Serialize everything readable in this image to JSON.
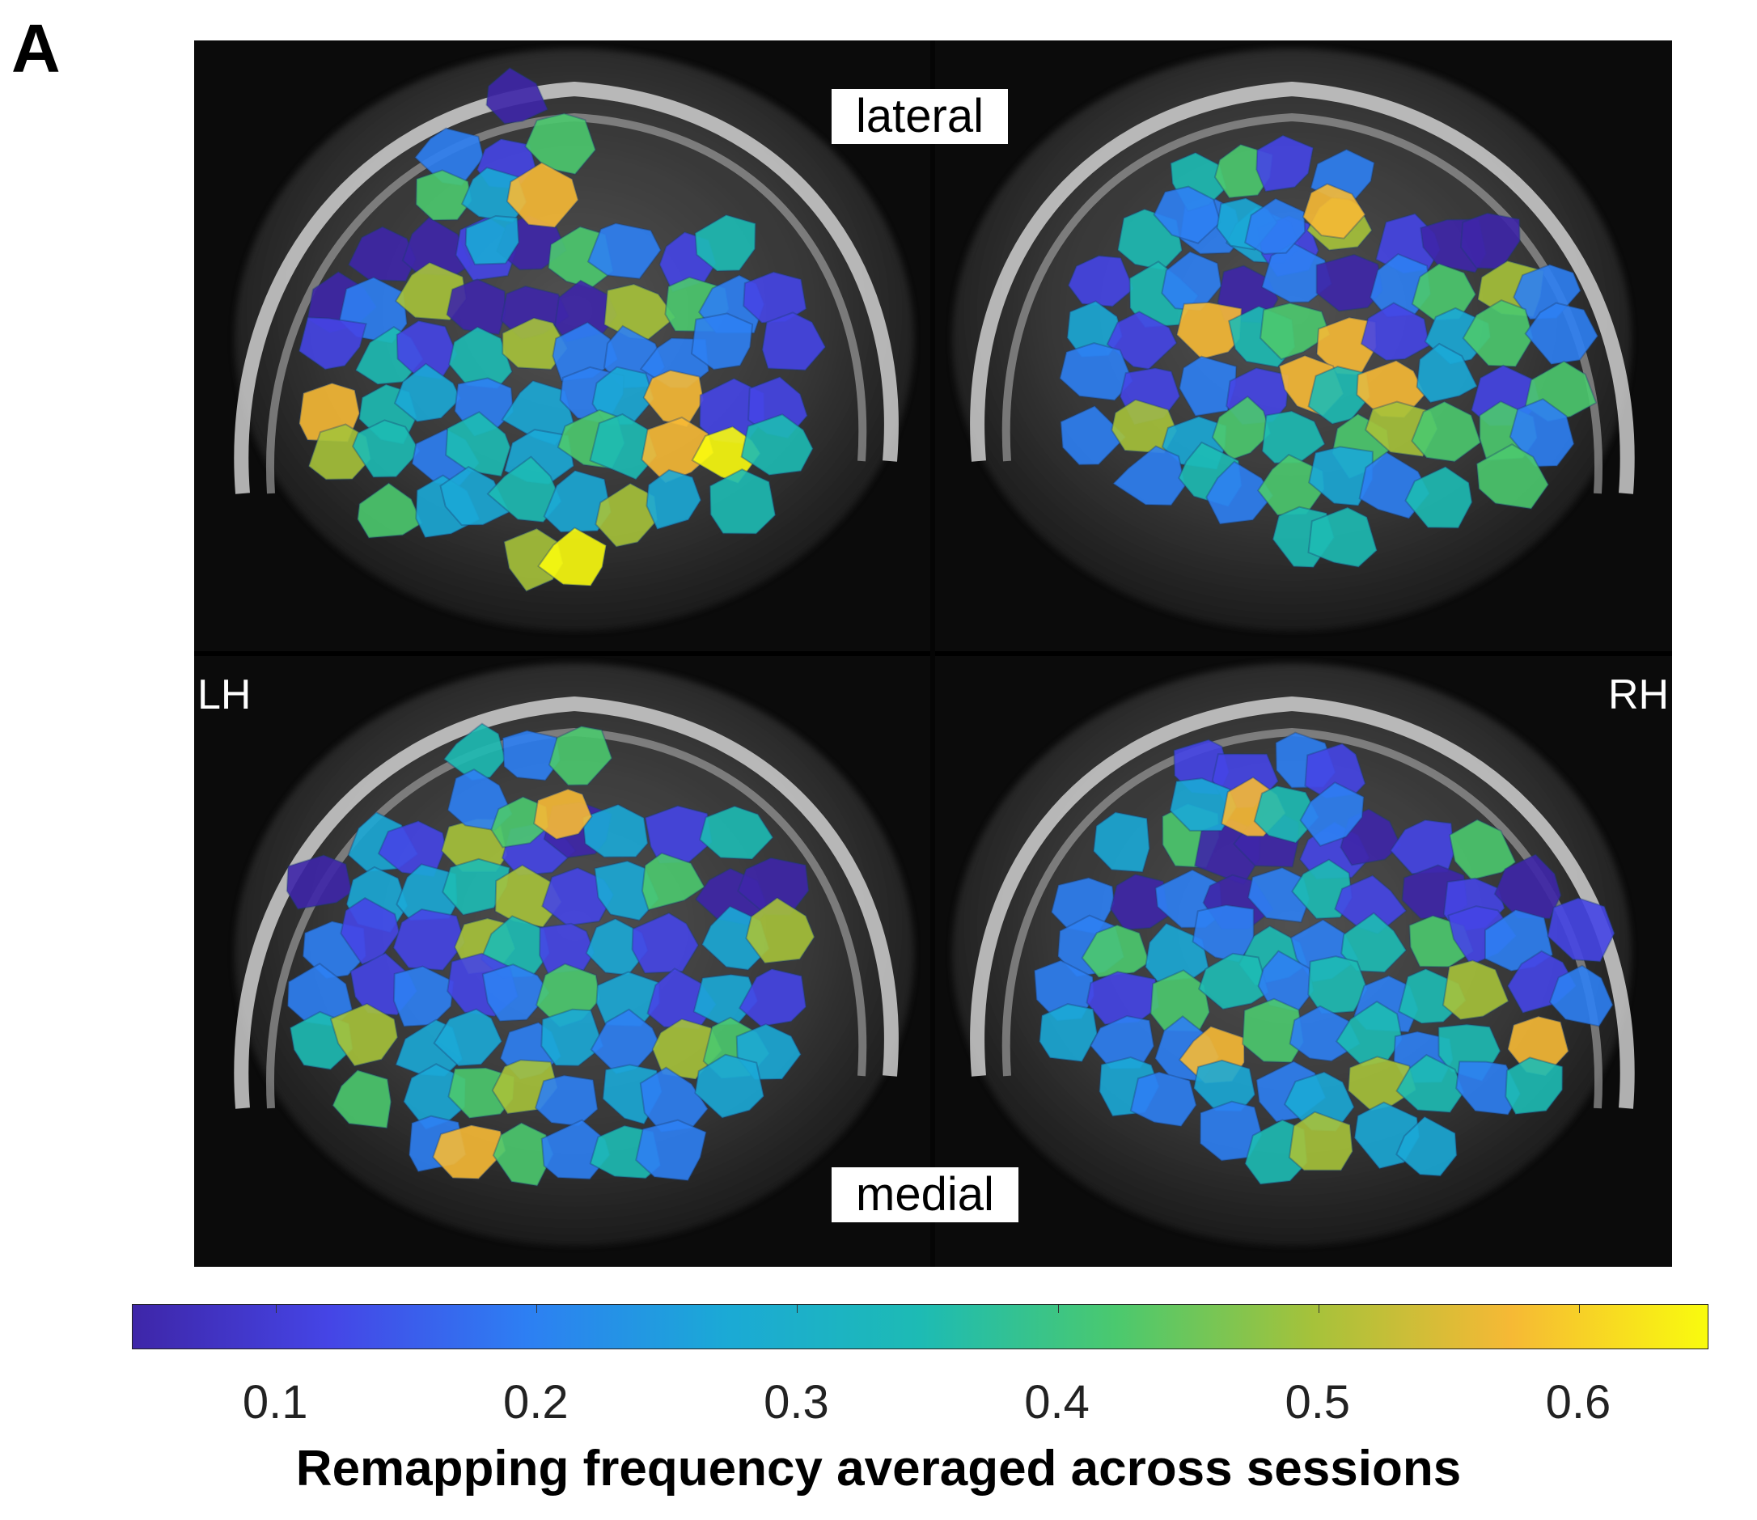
{
  "figure": {
    "panel_letter": "A",
    "views": {
      "top": "lateral",
      "bottom": "medial"
    },
    "hemispheres": {
      "left": "LH",
      "right": "RH"
    }
  },
  "colorbar": {
    "colormap": "parula",
    "colors": [
      "#3e26a8",
      "#4545e6",
      "#2d7ff3",
      "#1ba9d6",
      "#1dbbb4",
      "#4bc96e",
      "#a6c23a",
      "#f6b935",
      "#f9fb0e"
    ],
    "range": [
      0.045,
      0.65
    ],
    "ticks": [
      "0.1",
      "0.2",
      "0.3",
      "0.4",
      "0.5",
      "0.6"
    ],
    "label": "Remapping frequency averaged across sessions"
  }
}
